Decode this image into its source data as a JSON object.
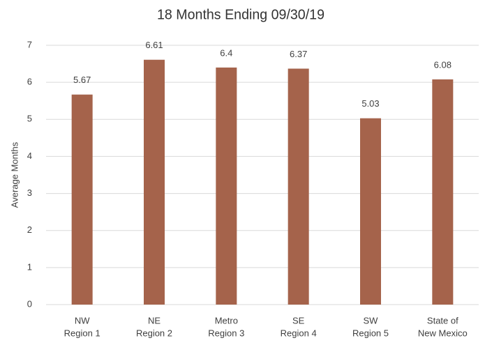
{
  "chart_data": {
    "type": "bar",
    "title": "18 Months Ending 09/30/19",
    "y_label": "Average Months",
    "categories": [
      [
        "NW",
        "Region 1"
      ],
      [
        "NE",
        "Region 2"
      ],
      [
        "Metro",
        "Region 3"
      ],
      [
        "SE",
        "Region 4"
      ],
      [
        "SW",
        "Region 5"
      ],
      [
        "State of",
        "New Mexico"
      ]
    ],
    "values": [
      5.67,
      6.61,
      6.4,
      6.37,
      5.03,
      6.08
    ],
    "color": "#a5634b",
    "ylim": [
      0,
      7
    ],
    "yticks": [
      0,
      1,
      2,
      3,
      4,
      5,
      6,
      7
    ],
    "grid": true
  }
}
